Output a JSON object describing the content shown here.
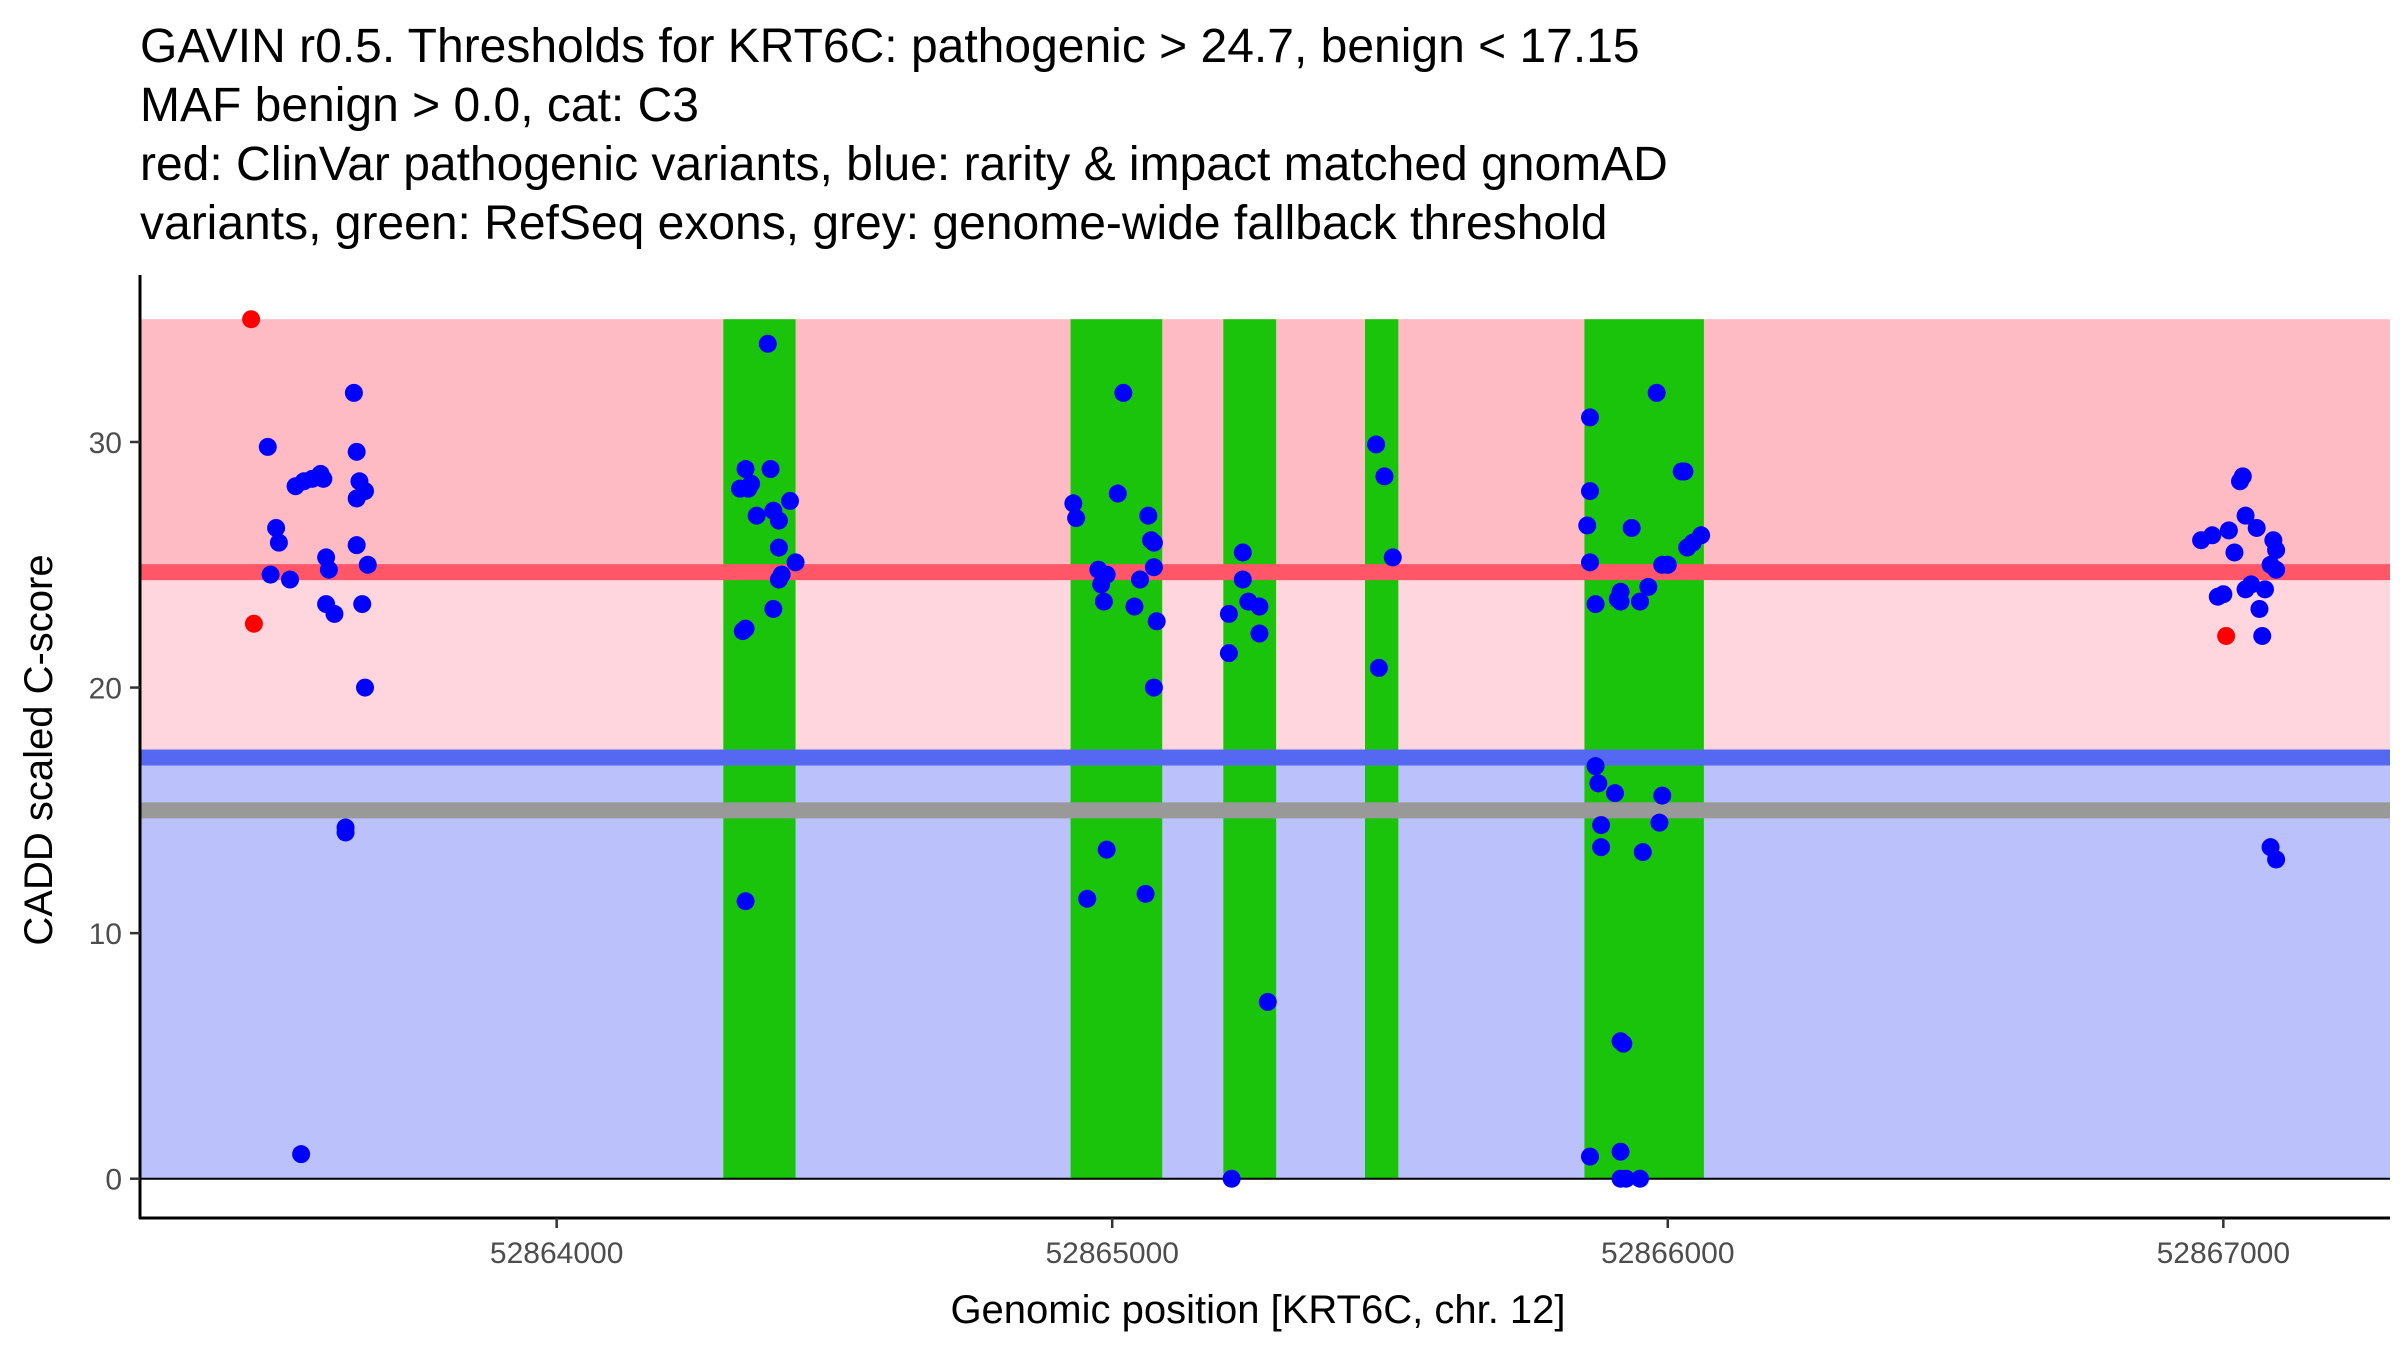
{
  "chart_data": {
    "type": "scatter",
    "title_lines": [
      "GAVIN r0.5. Thresholds for KRT6C: pathogenic > 24.7, benign < 17.15",
      "MAF benign > 0.0, cat: C3",
      "red: ClinVar pathogenic variants, blue: rarity & impact matched gnomAD",
      "variants, green: RefSeq exons, grey: genome-wide fallback threshold"
    ],
    "xlabel": "Genomic position [KRT6C, chr. 12]",
    "ylabel": "CADD scaled C-score",
    "xlim": [
      52863250,
      52867300
    ],
    "ylim": [
      -1.6,
      36.8
    ],
    "x_ticks": [
      52864000,
      52865000,
      52866000,
      52867000
    ],
    "x_tick_labels": [
      "52864000",
      "52865000",
      "52866000",
      "52867000"
    ],
    "y_ticks": [
      0,
      10,
      20,
      30
    ],
    "y_tick_labels": [
      "0",
      "10",
      "20",
      "30"
    ],
    "thresholds": {
      "pathogenic": 24.7,
      "benign": 17.15,
      "genome_wide_fallback": 15.0,
      "score_max": 35
    },
    "colors": {
      "pathogenic_region": "#FFBBC3",
      "intermediate_region": "#FFD6DD",
      "benign_region": "#BBC1FA",
      "pathogenic_line": "#FF5767",
      "benign_line": "#5568F2",
      "fallback_line": "#999999",
      "exon": "#1AC40B",
      "clinvar": "#FF0000",
      "gnomad": "#0000FF"
    },
    "exons": [
      [
        52864300,
        52864430
      ],
      [
        52864925,
        52865090
      ],
      [
        52865200,
        52865295
      ],
      [
        52865455,
        52865515
      ],
      [
        52865850,
        52866065
      ]
    ],
    "series": [
      {
        "name": "ClinVar pathogenic variants",
        "color": "#FF0000",
        "points": [
          [
            52863450,
            35.0
          ],
          [
            52863455,
            22.6
          ],
          [
            52867005,
            22.1
          ]
        ]
      },
      {
        "name": "rarity & impact matched gnomAD variants",
        "color": "#0000FF",
        "points": [
          [
            52863480,
            29.8
          ],
          [
            52863495,
            26.5
          ],
          [
            52863500,
            25.9
          ],
          [
            52863485,
            24.6
          ],
          [
            52863520,
            24.4
          ],
          [
            52863530,
            28.2
          ],
          [
            52863545,
            28.4
          ],
          [
            52863560,
            28.5
          ],
          [
            52863575,
            28.7
          ],
          [
            52863580,
            28.5
          ],
          [
            52863585,
            25.3
          ],
          [
            52863590,
            24.8
          ],
          [
            52863585,
            23.4
          ],
          [
            52863600,
            23.0
          ],
          [
            52863620,
            14.3
          ],
          [
            52863620,
            14.1
          ],
          [
            52863540,
            1.0
          ],
          [
            52863635,
            32.0
          ],
          [
            52863640,
            29.6
          ],
          [
            52863645,
            28.4
          ],
          [
            52863640,
            27.7
          ],
          [
            52863655,
            28.0
          ],
          [
            52863640,
            25.8
          ],
          [
            52863650,
            23.4
          ],
          [
            52863660,
            25.0
          ],
          [
            52863655,
            20.0
          ],
          [
            52864330,
            28.1
          ],
          [
            52864340,
            28.9
          ],
          [
            52864345,
            28.1
          ],
          [
            52864385,
            28.9
          ],
          [
            52864350,
            28.3
          ],
          [
            52864360,
            27.0
          ],
          [
            52864380,
            34.0
          ],
          [
            52864390,
            27.2
          ],
          [
            52864400,
            26.8
          ],
          [
            52864420,
            27.6
          ],
          [
            52864400,
            25.7
          ],
          [
            52864405,
            24.6
          ],
          [
            52864400,
            24.4
          ],
          [
            52864430,
            25.1
          ],
          [
            52864390,
            23.2
          ],
          [
            52864340,
            22.4
          ],
          [
            52864335,
            22.3
          ],
          [
            52864340,
            11.3
          ],
          [
            52864930,
            27.5
          ],
          [
            52864935,
            26.9
          ],
          [
            52864975,
            24.8
          ],
          [
            52864990,
            24.6
          ],
          [
            52864980,
            24.2
          ],
          [
            52864985,
            23.5
          ],
          [
            52865010,
            27.9
          ],
          [
            52865020,
            32.0
          ],
          [
            52865040,
            23.3
          ],
          [
            52865050,
            24.4
          ],
          [
            52865065,
            27.0
          ],
          [
            52865070,
            26.0
          ],
          [
            52865075,
            25.9
          ],
          [
            52865075,
            24.9
          ],
          [
            52865080,
            22.7
          ],
          [
            52865075,
            20.0
          ],
          [
            52864955,
            11.4
          ],
          [
            52864990,
            13.4
          ],
          [
            52865060,
            11.6
          ],
          [
            52865210,
            23.0
          ],
          [
            52865210,
            21.4
          ],
          [
            52865235,
            25.5
          ],
          [
            52865235,
            24.4
          ],
          [
            52865245,
            23.5
          ],
          [
            52865265,
            23.3
          ],
          [
            52865265,
            22.2
          ],
          [
            52865280,
            7.2
          ],
          [
            52865215,
            0.0
          ],
          [
            52865475,
            29.9
          ],
          [
            52865480,
            20.8
          ],
          [
            52865490,
            28.6
          ],
          [
            52865505,
            25.3
          ],
          [
            52865860,
            31.0
          ],
          [
            52865860,
            28.0
          ],
          [
            52865855,
            26.6
          ],
          [
            52865860,
            25.1
          ],
          [
            52865870,
            23.4
          ],
          [
            52865870,
            16.8
          ],
          [
            52865875,
            16.1
          ],
          [
            52865880,
            14.4
          ],
          [
            52865880,
            13.5
          ],
          [
            52865905,
            15.7
          ],
          [
            52865910,
            23.6
          ],
          [
            52865915,
            23.9
          ],
          [
            52865915,
            23.5
          ],
          [
            52865935,
            26.5
          ],
          [
            52865950,
            23.5
          ],
          [
            52865965,
            24.1
          ],
          [
            52865980,
            32.0
          ],
          [
            52865990,
            15.6
          ],
          [
            52865985,
            14.5
          ],
          [
            52865955,
            13.3
          ],
          [
            52865990,
            25.0
          ],
          [
            52866000,
            25.0
          ],
          [
            52866025,
            28.8
          ],
          [
            52866030,
            28.8
          ],
          [
            52866035,
            25.7
          ],
          [
            52866045,
            25.9
          ],
          [
            52866060,
            26.2
          ],
          [
            52865915,
            5.6
          ],
          [
            52865920,
            5.5
          ],
          [
            52865860,
            0.9
          ],
          [
            52865915,
            1.1
          ],
          [
            52865915,
            0.0
          ],
          [
            52865925,
            0.0
          ],
          [
            52865950,
            0.0
          ],
          [
            52866960,
            26.0
          ],
          [
            52866980,
            26.2
          ],
          [
            52866990,
            23.7
          ],
          [
            52867000,
            23.8
          ],
          [
            52867010,
            26.4
          ],
          [
            52867020,
            25.5
          ],
          [
            52867030,
            28.4
          ],
          [
            52867035,
            28.6
          ],
          [
            52867040,
            27.0
          ],
          [
            52867040,
            24.0
          ],
          [
            52867050,
            24.2
          ],
          [
            52867060,
            26.5
          ],
          [
            52867065,
            23.2
          ],
          [
            52867070,
            22.1
          ],
          [
            52867075,
            24.0
          ],
          [
            52867085,
            25.0
          ],
          [
            52867090,
            26.0
          ],
          [
            52867095,
            25.6
          ],
          [
            52867095,
            24.8
          ],
          [
            52867085,
            13.5
          ],
          [
            52867095,
            13.0
          ]
        ]
      }
    ]
  }
}
